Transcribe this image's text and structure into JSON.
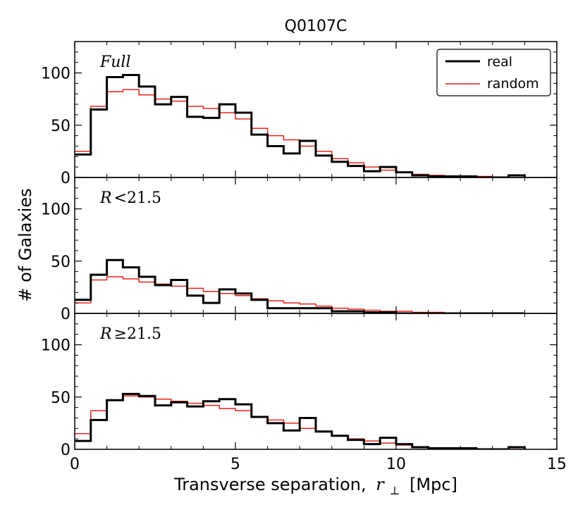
{
  "chart_data": {
    "type": "histogram",
    "title": "Q0107C",
    "xlabel_text": "Transverse separation,",
    "xlabel_symbol": "r",
    "xlabel_subscript": "⊥",
    "xlabel_unit": "[Mpc]",
    "ylabel": "# of Galaxies",
    "xlim": [
      0,
      15
    ],
    "ylim": [
      0,
      130
    ],
    "xticks": [
      0,
      5,
      10,
      15
    ],
    "yticks": [
      0,
      50,
      100
    ],
    "bin_edges": [
      0,
      0.5,
      1,
      1.5,
      2,
      2.5,
      3,
      3.5,
      4,
      4.5,
      5,
      5.5,
      6,
      6.5,
      7,
      7.5,
      8,
      8.5,
      9,
      9.5,
      10,
      10.5,
      11,
      11.5,
      12,
      12.5,
      13,
      13.5,
      14
    ],
    "legend": [
      {
        "name": "real",
        "color": "#000000"
      },
      {
        "name": "random",
        "color": "#e8231c"
      }
    ],
    "panels": [
      {
        "label": "Full",
        "series": [
          {
            "name": "real",
            "values": [
              22,
              65,
              96,
              98,
              87,
              70,
              77,
              58,
              57,
              70,
              62,
              41,
              30,
              23,
              35,
              21,
              15,
              11,
              6,
              10,
              5,
              2,
              1,
              1,
              1,
              0,
              0,
              2
            ]
          },
          {
            "name": "random",
            "values": [
              25,
              68,
              82,
              84,
              79,
              75,
              73,
              68,
              66,
              62,
              56,
              47,
              40,
              36,
              30,
              25,
              18,
              14,
              10,
              7,
              5,
              3,
              2,
              1,
              1,
              1,
              0,
              0
            ]
          }
        ]
      },
      {
        "label": "R<21.5",
        "label_symbol": "R",
        "label_rest": "<21.5",
        "series": [
          {
            "name": "real",
            "values": [
              13,
              37,
              51,
              44,
              35,
              27,
              32,
              17,
              10,
              23,
              19,
              13,
              5,
              5,
              5,
              5,
              2,
              2,
              1,
              1,
              0,
              0,
              0,
              0,
              0,
              0,
              0,
              0
            ]
          },
          {
            "name": "random",
            "values": [
              10,
              32,
              35,
              33,
              30,
              28,
              26,
              24,
              21,
              19,
              17,
              14,
              12,
              10,
              9,
              7,
              5,
              4,
              3,
              2,
              2,
              1,
              1,
              0,
              0,
              0,
              0,
              0
            ]
          }
        ]
      },
      {
        "label": "R≥21.5",
        "label_symbol": "R",
        "label_rest": "≥21.5",
        "series": [
          {
            "name": "real",
            "values": [
              8,
              28,
              47,
              53,
              51,
              42,
              45,
              41,
              46,
              48,
              43,
              31,
              25,
              18,
              30,
              17,
              13,
              9,
              5,
              11,
              5,
              2,
              1,
              1,
              1,
              0,
              0,
              2
            ]
          },
          {
            "name": "random",
            "values": [
              15,
              37,
              47,
              51,
              50,
              48,
              46,
              44,
              42,
              39,
              37,
              31,
              28,
              25,
              20,
              17,
              13,
              10,
              8,
              6,
              4,
              2,
              1,
              1,
              0,
              0,
              0,
              0
            ]
          }
        ]
      }
    ]
  }
}
